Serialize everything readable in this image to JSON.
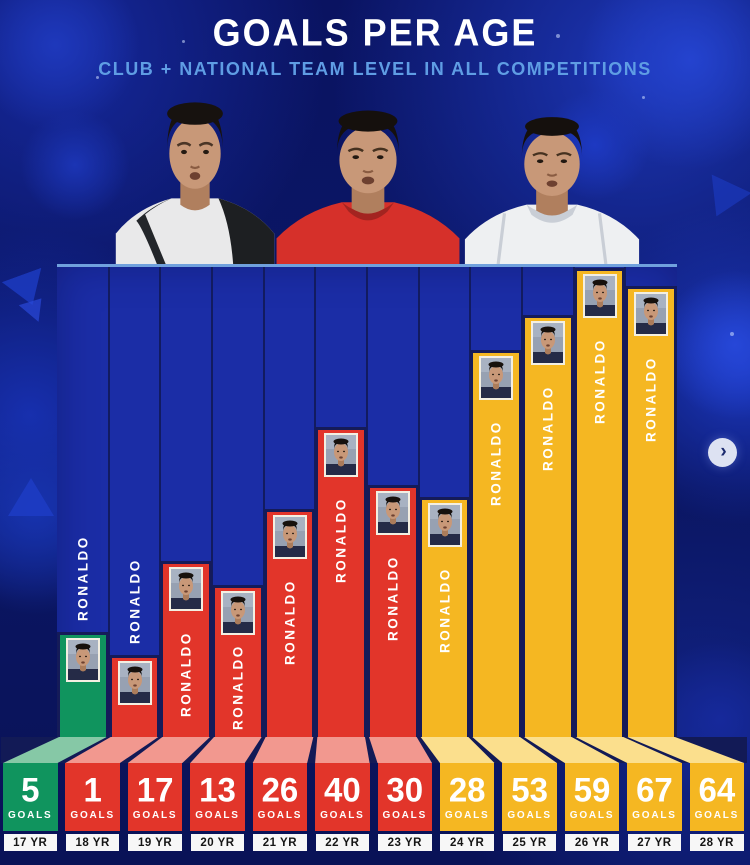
{
  "header": {
    "title": "GOALS PER AGE",
    "subtitle": "CLUB + NATIONAL TEAM LEVEL IN ALL COMPETITIONS"
  },
  "nav": {
    "next_icon": "›"
  },
  "chart_data": {
    "type": "bar",
    "title": "GOALS PER AGE",
    "subtitle": "CLUB + NATIONAL TEAM LEVEL IN ALL COMPETITIONS",
    "categories": [
      "17 YR",
      "18 YR",
      "19 YR",
      "20 YR",
      "21 YR",
      "22 YR",
      "23 YR",
      "24 YR",
      "25 YR",
      "26 YR",
      "27 YR",
      "28 YR"
    ],
    "values": [
      5,
      1,
      17,
      13,
      26,
      40,
      30,
      28,
      53,
      59,
      67,
      64
    ],
    "bar_label": "RONALDO",
    "value_unit_label": "GOALS",
    "ylim": [
      0,
      67
    ],
    "legend": "none",
    "grid": false,
    "colors": [
      "#10945e",
      "#e2352a",
      "#e2352a",
      "#e2352a",
      "#e2352a",
      "#e2352a",
      "#e2352a",
      "#f5b722",
      "#f5b722",
      "#f5b722",
      "#f5b722",
      "#f5b722"
    ],
    "colors_light": [
      "#86c8a6",
      "#f2988f",
      "#f2988f",
      "#f2988f",
      "#f2988f",
      "#f2988f",
      "#f2988f",
      "#fbdf8d",
      "#fbdf8d",
      "#fbdf8d",
      "#fbdf8d",
      "#fbdf8d"
    ]
  },
  "theme": {
    "page_bg": "#0a1361",
    "panel_bg": "#1b2da6",
    "panel_top_line": "#70a1dd",
    "divider": "#121b60",
    "bar_outline": "#151b59",
    "band_bg": "#121a56",
    "age_box_bg": "#f7f7f7",
    "age_box_text": "#151515",
    "title_color": "#ffffff",
    "subtitle_color": "#5f9de4"
  }
}
